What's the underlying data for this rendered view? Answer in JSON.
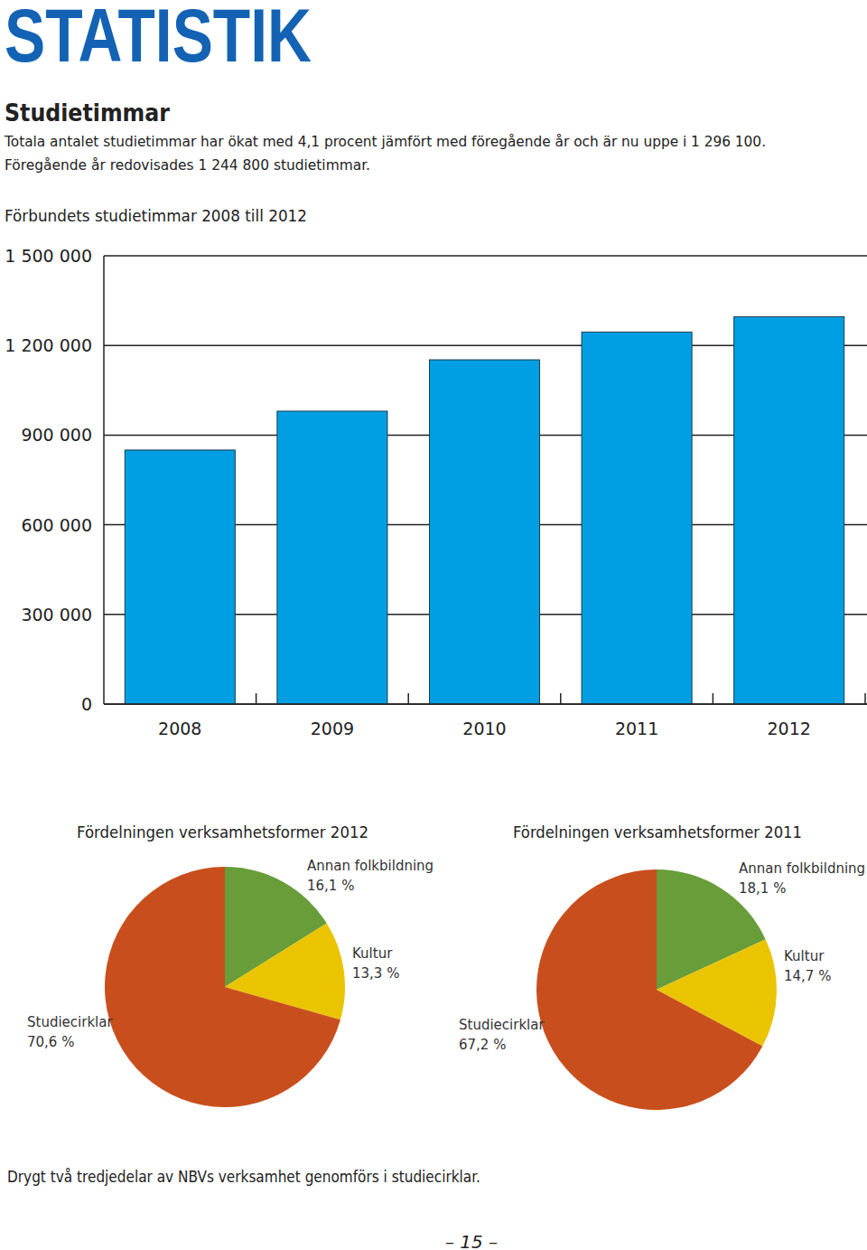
{
  "page": {
    "header": "STATISTIK",
    "heading": "Studietimmar",
    "intro": [
      "Totala antalet studietimmar har ökat med 4,1 procent jämfört med föregående år och är nu uppe i 1 296 100.",
      "Föregående år redovisades 1 244 800 studietimmar."
    ],
    "footnote": "Drygt två tredjedelar av NBVs verksamhet genomförs i studiecirklar.",
    "page_number": "– 15 –"
  },
  "chart_data": [
    {
      "type": "bar",
      "title": "Förbundets studietimmar 2008 till 2012",
      "categories": [
        "2008",
        "2009",
        "2010",
        "2011",
        "2012"
      ],
      "values": [
        850000,
        980000,
        1152000,
        1244800,
        1296100
      ],
      "color": "#009fe3",
      "ylim": [
        0,
        1500000
      ],
      "yticks": [
        0,
        {
          "value": 300000,
          "label": "300 000"
        },
        {
          "value": 600000,
          "label": "600 000"
        },
        {
          "value": 900000,
          "label": "900 000"
        },
        {
          "value": 1200000,
          "label": "1 200 000"
        },
        {
          "value": 1500000,
          "label": "1 500 000"
        }
      ],
      "grid": true
    },
    {
      "type": "pie",
      "title": "Fördelningen verksamhetsformer 2012",
      "categories": [
        "Annan folkbildning",
        "Kultur",
        "Studiecirklar"
      ],
      "values": [
        16.1,
        13.3,
        70.6
      ],
      "value_labels": [
        "16,1 %",
        "13,3 %",
        "70,6 %"
      ],
      "colors": [
        "#689d3a",
        "#ebc400",
        "#c84f1d"
      ],
      "data_labels": true
    },
    {
      "type": "pie",
      "title": "Fördelningen verksamhetsformer 2011",
      "categories": [
        "Annan folkbildning",
        "Kultur",
        "Studiecirklar"
      ],
      "values": [
        18.1,
        14.7,
        67.2
      ],
      "value_labels": [
        "18,1 %",
        "14,7 %",
        "67,2 %"
      ],
      "colors": [
        "#689d3a",
        "#ebc400",
        "#c84f1d"
      ],
      "data_labels": true
    }
  ]
}
